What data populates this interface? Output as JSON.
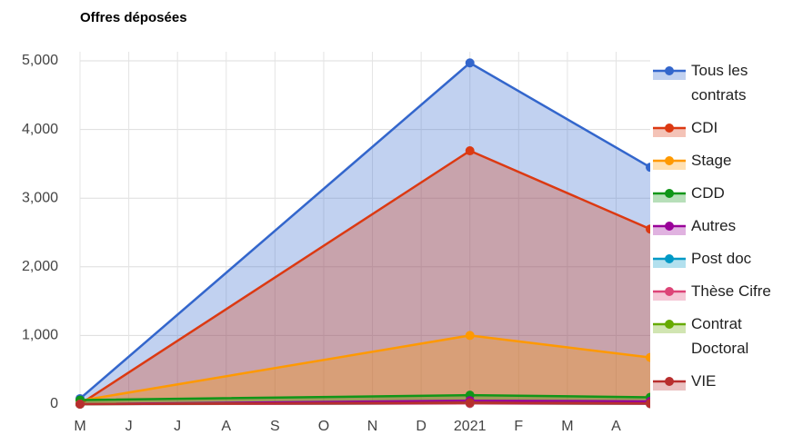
{
  "chart_data": {
    "type": "area",
    "title": "Offres déposées",
    "x": [
      0,
      8,
      11.7
    ],
    "xlim": [
      0,
      11.7
    ],
    "xticks": [
      {
        "value": 0,
        "label": "M"
      },
      {
        "value": 1,
        "label": "J"
      },
      {
        "value": 2,
        "label": "J"
      },
      {
        "value": 3,
        "label": "A"
      },
      {
        "value": 4,
        "label": "S"
      },
      {
        "value": 5,
        "label": "O"
      },
      {
        "value": 6,
        "label": "N"
      },
      {
        "value": 7,
        "label": "D"
      },
      {
        "value": 8,
        "label": "2021"
      },
      {
        "value": 9,
        "label": "F"
      },
      {
        "value": 10,
        "label": "M"
      },
      {
        "value": 11,
        "label": "A"
      }
    ],
    "ylim": [
      0,
      5000
    ],
    "yticks": [
      0,
      {
        "value": 1000,
        "label": "1,000"
      },
      {
        "value": 2000,
        "label": "2,000"
      },
      {
        "value": 3000,
        "label": "3,000"
      },
      {
        "value": 4000,
        "label": "4,000"
      },
      {
        "value": 5000,
        "label": "5,000"
      }
    ],
    "grid": true,
    "legend": "right",
    "series": [
      {
        "name": "Tous les contrats",
        "color": "#3366cc",
        "values": [
          80,
          4970,
          3450
        ]
      },
      {
        "name": "CDI",
        "color": "#dc3912",
        "values": [
          0,
          3690,
          2550
        ]
      },
      {
        "name": "Stage",
        "color": "#ff9900",
        "values": [
          50,
          1000,
          680
        ]
      },
      {
        "name": "CDD",
        "color": "#109618",
        "values": [
          60,
          130,
          100
        ]
      },
      {
        "name": "Autres",
        "color": "#990099",
        "values": [
          0,
          50,
          40
        ]
      },
      {
        "name": "Post doc",
        "color": "#0099c6",
        "values": [
          0,
          10,
          5
        ]
      },
      {
        "name": "Thèse Cifre",
        "color": "#dd4477",
        "values": [
          0,
          10,
          5
        ]
      },
      {
        "name": "Contrat Doctoral",
        "color": "#66aa00",
        "values": [
          0,
          20,
          10
        ]
      },
      {
        "name": "VIE",
        "color": "#b82e2e",
        "values": [
          0,
          20,
          10
        ]
      }
    ]
  }
}
